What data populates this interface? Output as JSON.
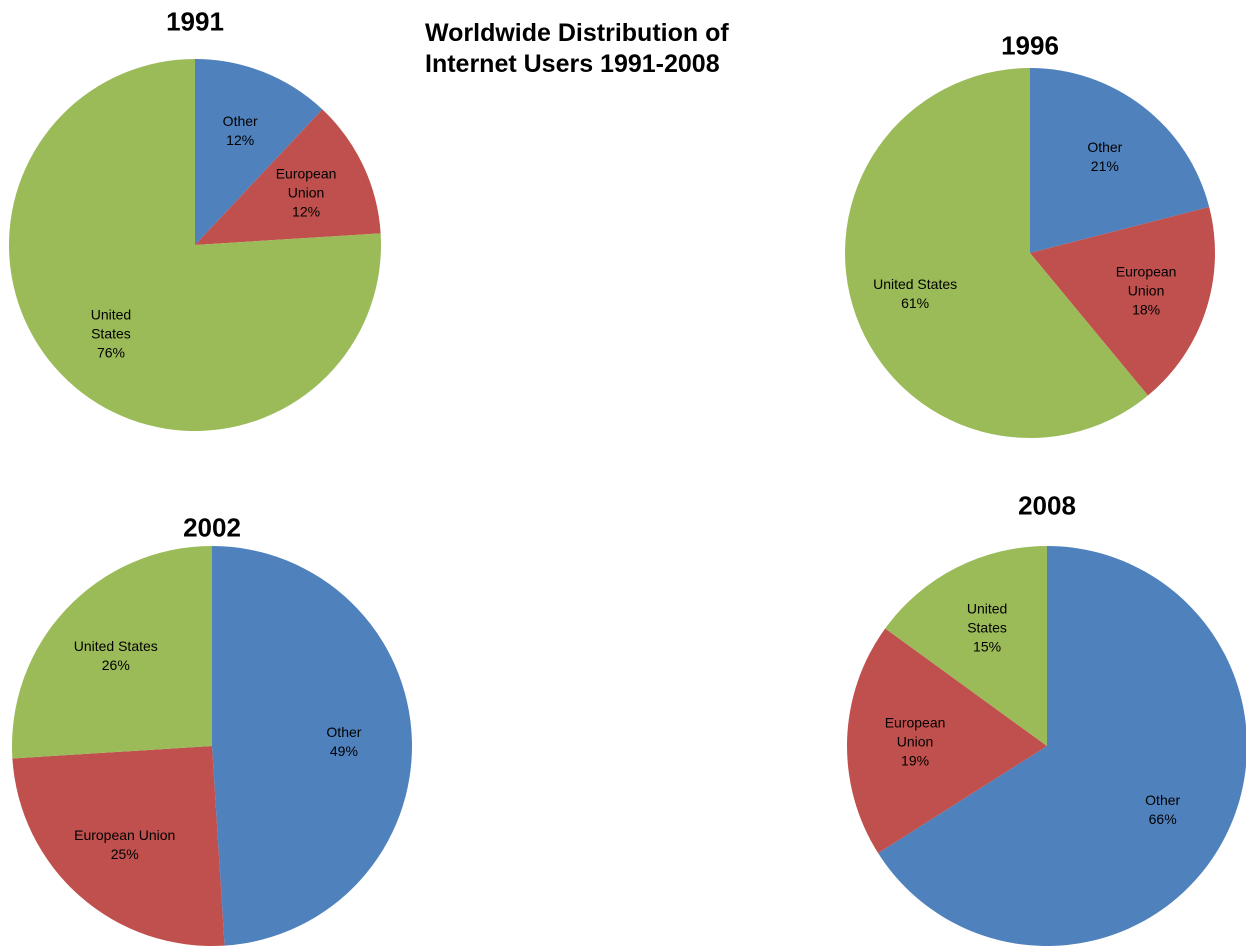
{
  "title": "Worldwide Distribution of Internet Users 1991-2008",
  "chart_data": [
    {
      "type": "pie",
      "title": "1991",
      "categories": [
        "Other",
        "European Union",
        "United States"
      ],
      "values": [
        12,
        12,
        76
      ],
      "value_labels": [
        "12%",
        "12%",
        "76%"
      ],
      "colors": [
        "#4f81bd",
        "#c0504d",
        "#9bbb59"
      ]
    },
    {
      "type": "pie",
      "title": "1996",
      "categories": [
        "Other",
        "European Union",
        "United States"
      ],
      "values": [
        21,
        18,
        61
      ],
      "value_labels": [
        "21%",
        "18%",
        "61%"
      ],
      "colors": [
        "#4f81bd",
        "#c0504d",
        "#9bbb59"
      ]
    },
    {
      "type": "pie",
      "title": "2002",
      "categories": [
        "Other",
        "European Union",
        "United States"
      ],
      "values": [
        49,
        25,
        26
      ],
      "value_labels": [
        "49%",
        "25%",
        "26%"
      ],
      "colors": [
        "#4f81bd",
        "#c0504d",
        "#9bbb59"
      ]
    },
    {
      "type": "pie",
      "title": "2008",
      "categories": [
        "Other",
        "European Union",
        "United States"
      ],
      "values": [
        66,
        19,
        15
      ],
      "value_labels": [
        "66%",
        "19%",
        "15%"
      ],
      "colors": [
        "#4f81bd",
        "#c0504d",
        "#9bbb59"
      ]
    }
  ]
}
